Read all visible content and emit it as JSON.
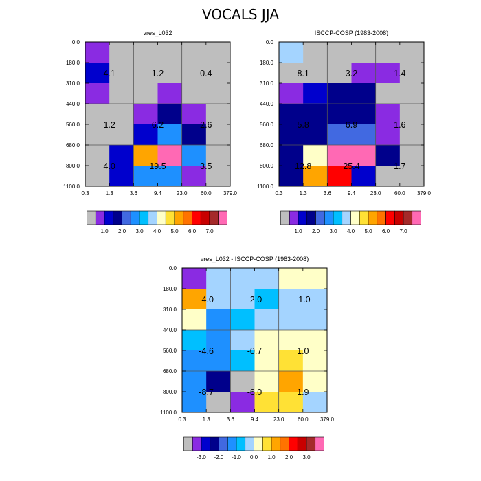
{
  "title": "VOCALS JJA",
  "palette": {
    "gray": "#bebebe",
    "colors": [
      "#8a2be2",
      "#0000cd",
      "#00008b",
      "#4169e1",
      "#1e90ff",
      "#00bfff",
      "#a4d4ff",
      "#ffffc8",
      "#ffe135",
      "#ffa500",
      "#ff7300",
      "#ff0000",
      "#c80000",
      "#a52a2a",
      "#ff69b4"
    ]
  },
  "chart_data": [
    {
      "type": "heatmap",
      "title": "vres_L032",
      "x_ticks": [
        "0.3",
        "1.3",
        "3.6",
        "9.4",
        "23.0",
        "60.0",
        "379.0"
      ],
      "y_ticks": [
        "0.0",
        "180.0",
        "310.0",
        "440.0",
        "560.0",
        "680.0",
        "800.0",
        "1100.0"
      ],
      "cells": [
        [
          1,
          0,
          0,
          0,
          0,
          0
        ],
        [
          2,
          0,
          0,
          0,
          0,
          0
        ],
        [
          1,
          0,
          0,
          1,
          0,
          0
        ],
        [
          0,
          0,
          1,
          3,
          1,
          0
        ],
        [
          0,
          0,
          2,
          5,
          3,
          0
        ],
        [
          0,
          2,
          10,
          15,
          5,
          0
        ],
        [
          0,
          2,
          5,
          5,
          1,
          0
        ]
      ],
      "block_values": [
        [
          "4.1",
          "1.2",
          "0.4"
        ],
        [
          "1.2",
          "6.2",
          "2.6"
        ],
        [
          "4.0",
          "19.5",
          "3.5"
        ]
      ],
      "colorbar": {
        "labels": [
          "1.0",
          "2.0",
          "3.0",
          "4.0",
          "5.0",
          "6.0",
          "7.0"
        ]
      }
    },
    {
      "type": "heatmap",
      "title": "ISCCP-COSP (1983-2008)",
      "x_ticks": [
        "0.3",
        "1.3",
        "3.6",
        "9.4",
        "23.0",
        "60.0",
        "379.0"
      ],
      "y_ticks": [
        "0.0",
        "180.0",
        "310.0",
        "440.0",
        "560.0",
        "680.0",
        "800.0",
        "1100.0"
      ],
      "cells": [
        [
          7,
          0,
          0,
          0,
          0,
          0
        ],
        [
          0,
          0,
          0,
          1,
          1,
          0
        ],
        [
          1,
          2,
          3,
          3,
          0,
          0
        ],
        [
          3,
          3,
          3,
          3,
          1,
          0
        ],
        [
          3,
          3,
          4,
          4,
          1,
          0
        ],
        [
          3,
          8,
          15,
          15,
          3,
          0
        ],
        [
          3,
          10,
          12,
          2,
          0,
          0
        ]
      ],
      "block_values": [
        [
          "8.1",
          "3.2",
          "1.4"
        ],
        [
          "5.8",
          "6.9",
          "1.6"
        ],
        [
          "12.8",
          "25.4",
          "1.7"
        ]
      ],
      "colorbar": {
        "labels": [
          "1.0",
          "2.0",
          "3.0",
          "4.0",
          "5.0",
          "6.0",
          "7.0"
        ]
      }
    },
    {
      "type": "heatmap",
      "title": "vres_L032 - ISCCP-COSP (1983-2008)",
      "x_ticks": [
        "0.3",
        "1.3",
        "3.6",
        "9.4",
        "23.0",
        "60.0",
        "379.0"
      ],
      "y_ticks": [
        "0.0",
        "180.0",
        "310.0",
        "440.0",
        "560.0",
        "680.0",
        "800.0",
        "1100.0"
      ],
      "cells": [
        [
          1,
          7,
          7,
          7,
          8,
          8
        ],
        [
          10,
          7,
          7,
          6,
          7,
          7
        ],
        [
          8,
          5,
          6,
          7,
          7,
          7
        ],
        [
          6,
          5,
          7,
          8,
          8,
          8
        ],
        [
          5,
          5,
          6,
          8,
          9,
          8
        ],
        [
          5,
          3,
          0,
          8,
          10,
          8
        ],
        [
          5,
          0,
          1,
          9,
          9,
          7
        ]
      ],
      "block_values": [
        [
          "-4.0",
          "-2.0",
          "-1.0"
        ],
        [
          "-4.6",
          "-0.7",
          "1.0"
        ],
        [
          "-8.7",
          "-6.0",
          "1.9"
        ]
      ],
      "colorbar": {
        "labels": [
          "-3.0",
          "-2.0",
          "-1.0",
          "0.0",
          "1.0",
          "2.0",
          "3.0"
        ]
      }
    }
  ]
}
